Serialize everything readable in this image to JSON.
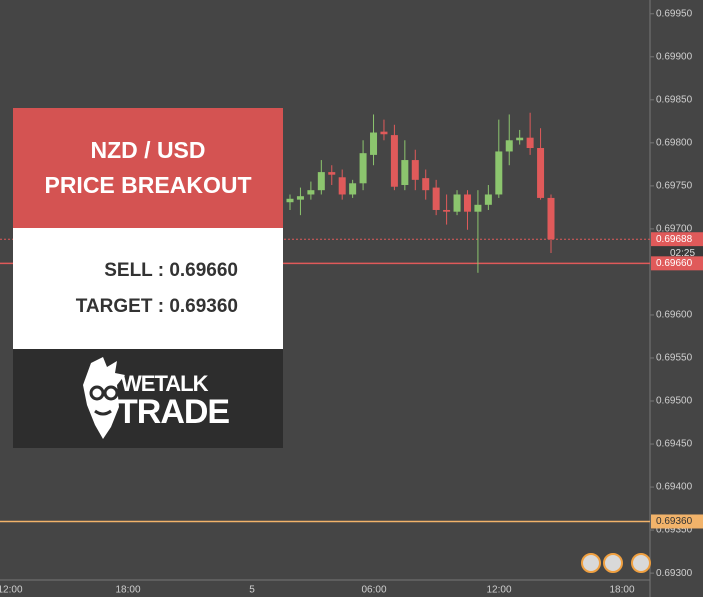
{
  "chart_data": {
    "type": "candlestick",
    "open": [
      0.69731,
      0.69734,
      0.6974,
      0.69745,
      0.69766,
      0.6976,
      0.6974,
      0.69753,
      0.69786,
      0.69813,
      0.69809,
      0.69751,
      0.6978,
      0.69759,
      0.69748,
      0.69722,
      0.6972,
      0.6974,
      0.6972,
      0.69728,
      0.6974,
      0.6979,
      0.69803,
      0.69806,
      0.69794,
      0.69736
    ],
    "high": [
      0.6974,
      0.69748,
      0.69755,
      0.6978,
      0.69774,
      0.69769,
      0.69757,
      0.69803,
      0.69833,
      0.69827,
      0.69821,
      0.69803,
      0.69792,
      0.69769,
      0.69757,
      0.6974,
      0.69745,
      0.69745,
      0.69745,
      0.69751,
      0.69827,
      0.69833,
      0.69815,
      0.69835,
      0.69817,
      0.6974
    ],
    "low": [
      0.69722,
      0.69716,
      0.69734,
      0.6974,
      0.69751,
      0.69734,
      0.69736,
      0.69745,
      0.69774,
      0.69803,
      0.69745,
      0.69745,
      0.69745,
      0.69734,
      0.69716,
      0.69705,
      0.69716,
      0.69699,
      0.69649,
      0.69722,
      0.69736,
      0.69774,
      0.69798,
      0.69786,
      0.69734,
      0.69672
    ],
    "close": [
      0.69735,
      0.69738,
      0.69745,
      0.69766,
      0.69763,
      0.6974,
      0.69753,
      0.69788,
      0.69812,
      0.6981,
      0.69749,
      0.6978,
      0.69757,
      0.69745,
      0.69722,
      0.6972,
      0.6974,
      0.6972,
      0.69728,
      0.6974,
      0.6979,
      0.69803,
      0.69806,
      0.69794,
      0.69736,
      0.69688
    ],
    "up_color": "#8cc56e",
    "down_color": "#e05a5a",
    "ylim": [
      0.69292,
      0.69966
    ],
    "yticks": [
      {
        "value": 0.693,
        "label": "0.69300"
      },
      {
        "value": 0.6935,
        "label": "0.69350"
      },
      {
        "value": 0.694,
        "label": "0.69400"
      },
      {
        "value": 0.6945,
        "label": "0.69450"
      },
      {
        "value": 0.695,
        "label": "0.69500"
      },
      {
        "value": 0.6955,
        "label": "0.69550"
      },
      {
        "value": 0.696,
        "label": "0.69600"
      },
      {
        "value": 0.697,
        "label": "0.69700"
      },
      {
        "value": 0.6975,
        "label": "0.69750"
      },
      {
        "value": 0.698,
        "label": "0.69800"
      },
      {
        "value": 0.6985,
        "label": "0.69850"
      },
      {
        "value": 0.699,
        "label": "0.69900"
      },
      {
        "value": 0.6995,
        "label": "0.69950"
      }
    ],
    "xtick_labels": [
      "12:00",
      "18:00",
      "5",
      "06:00",
      "12:00",
      "18:00"
    ],
    "levels": [
      {
        "value": 0.69688,
        "label": "0.69688",
        "color": "#e05a5a",
        "dash": true
      },
      {
        "value": 0.6966,
        "label": "0.69660",
        "color": "#e05a5a",
        "dash": false
      },
      {
        "value": 0.6936,
        "label": "0.69360",
        "color": "#f2b36a",
        "dash": false
      }
    ],
    "countdown": "02:25"
  },
  "overlay": {
    "title": [
      "NZD / USD",
      "PRICE BREAKOUT"
    ],
    "sell": "SELL : 0.69660",
    "target": "TARGET : 0.69360",
    "logo": [
      "WETALK",
      "TRADE"
    ]
  }
}
